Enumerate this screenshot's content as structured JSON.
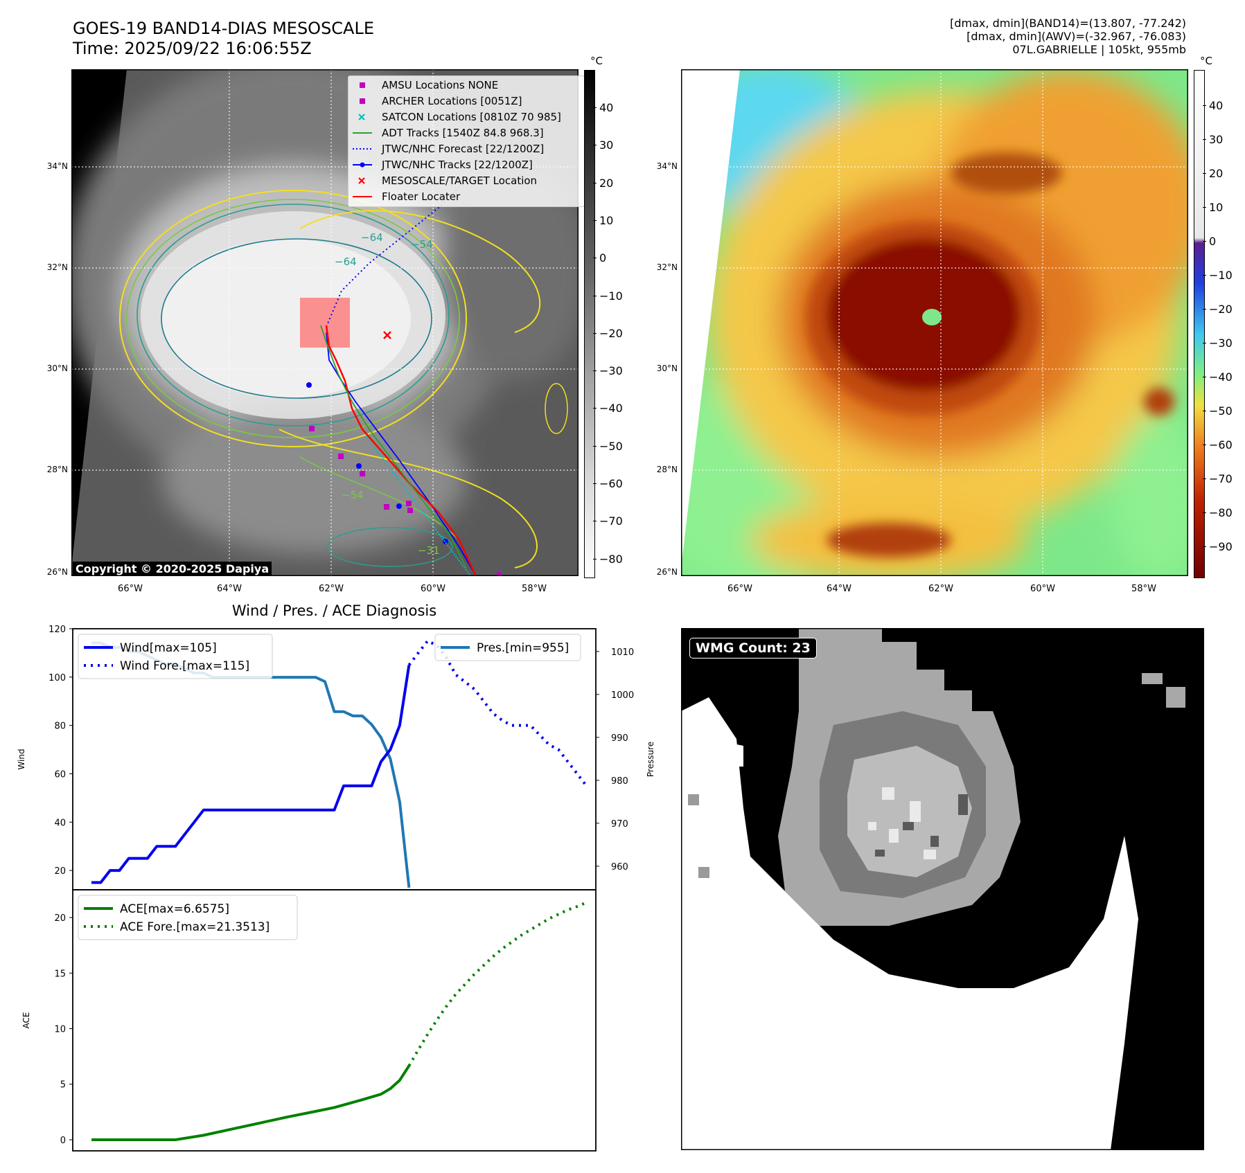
{
  "header": {
    "title": "GOES-19 BAND14-DIAS MESOSCALE",
    "time": "Time: 2025/09/22 16:06:55Z",
    "stats_band14": "[dmax, dmin](BAND14)=(13.807, -77.242)",
    "stats_awv": "[dmax, dmin](AWV)=(-32.967, -76.083)",
    "storm_info": "07L.GABRIELLE | 105kt, 955mb"
  },
  "colors": {
    "wind": "#0000ee",
    "pressure": "#1f77b4",
    "ace": "#008000",
    "adt_track": "#2ca02c",
    "jtwc_track": "#0000ff",
    "floater": "#ff0000",
    "amsu": "#c000c0",
    "satcon": "#00c0c0"
  },
  "maps": {
    "lat_labels": [
      "34°N",
      "32°N",
      "30°N",
      "28°N",
      "26°N"
    ],
    "lon_labels": [
      "66°W",
      "64°W",
      "62°W",
      "60°W",
      "58°W"
    ],
    "copyright": "Copyright © 2020-2025 Dapiya",
    "left_colorbar": {
      "unit": "°C",
      "ticks": [
        "40",
        "30",
        "20",
        "10",
        "0",
        "−10",
        "−20",
        "−30",
        "−40",
        "−50",
        "−60",
        "−70",
        "−80"
      ]
    },
    "right_colorbar": {
      "unit": "°C",
      "ticks": [
        "40",
        "30",
        "20",
        "10",
        "0",
        "−10",
        "−20",
        "−30",
        "−40",
        "−50",
        "−60",
        "−70",
        "−80",
        "−90"
      ]
    },
    "contour_labels": [
      "−64",
      "−64",
      "−54",
      "−54",
      "−31"
    ],
    "legend": [
      {
        "label": "AMSU Locations NONE",
        "marker": "square",
        "color": "#c000c0"
      },
      {
        "label": "ARCHER Locations [0051Z]",
        "marker": "square",
        "color": "#c000c0"
      },
      {
        "label": "SATCON Locations [0810Z 70 985]",
        "marker": "x",
        "color": "#00c0c0"
      },
      {
        "label": "ADT Tracks [1540Z 84.8 968.3]",
        "marker": "line",
        "color": "#2ca02c"
      },
      {
        "label": "JTWC/NHC Forecast [22/1200Z]",
        "marker": "dotted",
        "color": "#0000ff"
      },
      {
        "label": "JTWC/NHC Tracks [22/1200Z]",
        "marker": "line-dot",
        "color": "#0000ff"
      },
      {
        "label": "MESOSCALE/TARGET Location",
        "marker": "x",
        "color": "#ff0000"
      },
      {
        "label": "Floater Locater",
        "marker": "line",
        "color": "#ff0000"
      }
    ]
  },
  "wmg": {
    "label": "WMG Count: 23"
  },
  "chart_data": [
    {
      "type": "line",
      "title": "Wind / Pres. / ACE Diagnosis",
      "ylabel": "Wind",
      "y2label": "Pressure",
      "ylim": [
        12,
        120
      ],
      "y2lim": [
        954.5,
        1015.3
      ],
      "xlim": [
        -1,
        55
      ],
      "yticks": [
        "120",
        "100",
        "80",
        "60",
        "40",
        "20"
      ],
      "y2ticks": [
        "1010",
        "1000",
        "990",
        "980",
        "970",
        "960"
      ],
      "series": [
        {
          "name": "Wind[max=105]",
          "style": "solid",
          "axis": "left",
          "x": [
            1,
            2,
            3,
            4,
            5,
            6,
            7,
            8,
            9,
            10,
            11,
            12,
            13,
            14,
            15,
            16,
            17,
            18,
            19,
            20,
            21,
            22,
            23,
            24,
            25,
            26,
            27,
            28,
            29,
            30,
            31,
            32,
            33,
            34,
            35
          ],
          "values": [
            15,
            15,
            20,
            20,
            25,
            25,
            25,
            30,
            30,
            30,
            35,
            40,
            45,
            45,
            45,
            45,
            45,
            45,
            45,
            45,
            45,
            45,
            45,
            45,
            45,
            45,
            45,
            55,
            55,
            55,
            55,
            65,
            70,
            80,
            105
          ]
        },
        {
          "name": "Wind Fore.[max=115]",
          "style": "dotted",
          "axis": "left",
          "x": [
            35,
            36,
            37,
            38,
            39,
            40,
            41,
            42,
            43,
            44,
            45,
            46,
            47,
            48,
            49,
            50,
            51,
            52,
            53,
            54
          ],
          "values": [
            105,
            110,
            115,
            113,
            108,
            101,
            98,
            95,
            90,
            85,
            82,
            80,
            80,
            80,
            76,
            72,
            70,
            65,
            60,
            55
          ]
        },
        {
          "name": "Pres.[min=955]",
          "style": "solid",
          "axis": "right",
          "x": [
            1,
            2,
            3,
            4,
            5,
            6,
            7,
            8,
            9,
            10,
            11,
            12,
            13,
            14,
            15,
            16,
            17,
            18,
            19,
            20,
            21,
            22,
            23,
            24,
            25,
            26,
            27,
            28,
            29,
            30,
            31,
            32,
            33,
            34,
            35
          ],
          "values": [
            1012,
            1012,
            1011,
            1011,
            1010,
            1010,
            1009,
            1008,
            1007,
            1007,
            1006,
            1005,
            1005,
            1004,
            1004,
            1004,
            1004,
            1004,
            1004,
            1004,
            1004,
            1004,
            1004,
            1004,
            1004,
            1003,
            996,
            996,
            995,
            995,
            993,
            990,
            985,
            975,
            955
          ]
        }
      ]
    },
    {
      "type": "line",
      "ylabel": "ACE",
      "ylim": [
        -1,
        22.5
      ],
      "xlim": [
        -1,
        55
      ],
      "yticks": [
        "20",
        "15",
        "10",
        "5",
        "0"
      ],
      "series": [
        {
          "name": "ACE[max=6.6575]",
          "style": "solid",
          "x": [
            1,
            5,
            10,
            13,
            16,
            19,
            22,
            25,
            27,
            30,
            32,
            33,
            34,
            35
          ],
          "values": [
            0,
            0,
            0,
            0.4,
            0.95,
            1.5,
            2.05,
            2.55,
            2.9,
            3.6,
            4.1,
            4.6,
            5.35,
            6.6575
          ]
        },
        {
          "name": "ACE Fore.[max=21.3513]",
          "style": "dotted",
          "x": [
            35,
            36,
            37,
            38,
            39,
            40,
            41,
            42,
            43,
            44,
            45,
            46,
            47,
            48,
            49,
            50,
            51,
            52,
            53,
            54
          ],
          "values": [
            6.6575,
            8.1,
            9.5,
            10.8,
            12.0,
            13.1,
            14.0,
            14.9,
            15.7,
            16.5,
            17.2,
            17.8,
            18.4,
            18.9,
            19.4,
            19.9,
            20.3,
            20.7,
            21.0,
            21.3513
          ]
        }
      ]
    }
  ]
}
